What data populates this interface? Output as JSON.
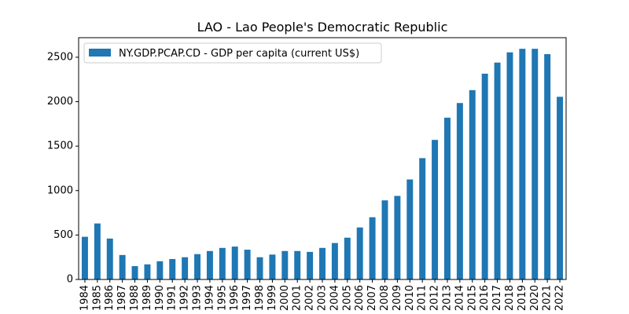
{
  "chart_data": {
    "type": "bar",
    "title": "LAO - Lao People's Democratic Republic",
    "xlabel": "",
    "ylabel": "",
    "ylim": [
      0,
      2720
    ],
    "yticks": [
      0,
      500,
      1000,
      1500,
      2000,
      2500
    ],
    "legend": {
      "placement": "top-left"
    },
    "grid": false,
    "categories": [
      "1984",
      "1985",
      "1986",
      "1987",
      "1988",
      "1989",
      "1990",
      "1991",
      "1992",
      "1993",
      "1994",
      "1995",
      "1996",
      "1997",
      "1998",
      "1999",
      "2000",
      "2001",
      "2002",
      "2003",
      "2004",
      "2005",
      "2006",
      "2007",
      "2008",
      "2009",
      "2010",
      "2011",
      "2012",
      "2013",
      "2014",
      "2015",
      "2016",
      "2017",
      "2018",
      "2019",
      "2020",
      "2021",
      "2022"
    ],
    "series": [
      {
        "name": "NY.GDP.PCAP.CD - GDP per capita (current US$)",
        "color": "#1f77b4",
        "values": [
          480,
          630,
          460,
          275,
          150,
          170,
          205,
          230,
          250,
          285,
          320,
          355,
          370,
          335,
          250,
          280,
          320,
          320,
          310,
          355,
          410,
          470,
          585,
          700,
          890,
          940,
          1125,
          1365,
          1570,
          1820,
          1985,
          2130,
          2315,
          2440,
          2555,
          2595,
          2595,
          2535,
          2055
        ]
      }
    ]
  }
}
